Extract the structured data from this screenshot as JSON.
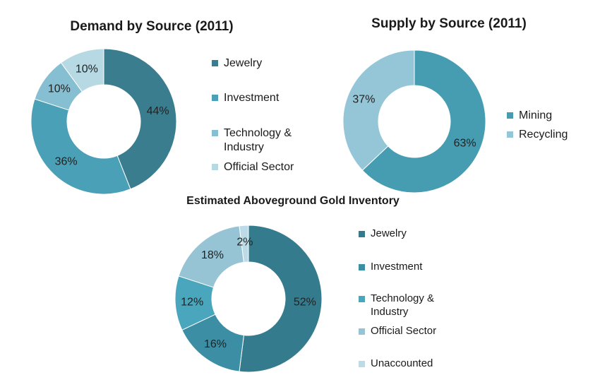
{
  "chart_data": [
    {
      "type": "pie",
      "donut": true,
      "title": "Demand by Source (2011)",
      "categories": [
        "Jewelry",
        "Investment",
        "Technology & Industry",
        "Official Sector"
      ],
      "values": [
        44,
        36,
        10,
        10
      ],
      "data_labels": [
        "44%",
        "36%",
        "10%",
        "10%"
      ],
      "colors": [
        "#3a7d8f",
        "#4aa0b6",
        "#86bfd1",
        "#b7d9e4"
      ],
      "legend": {
        "position": "right",
        "items": [
          "Jewelry",
          "Investment",
          "Technology &\nIndustry",
          "Official Sector"
        ]
      }
    },
    {
      "type": "pie",
      "donut": true,
      "title": "Supply by Source (2011)",
      "categories": [
        "Mining",
        "Recycling"
      ],
      "values": [
        63,
        37
      ],
      "data_labels": [
        "63%",
        "37%"
      ],
      "colors": [
        "#469db2",
        "#94c6d8"
      ],
      "legend": {
        "position": "right",
        "items": [
          "Mining",
          "Recycling"
        ]
      }
    },
    {
      "type": "pie",
      "donut": true,
      "title": "Estimated Aboveground Gold Inventory",
      "categories": [
        "Jewelry",
        "Investment",
        "Technology & Industry",
        "Official Sector",
        "Unaccounted"
      ],
      "values": [
        52,
        16,
        12,
        18,
        2
      ],
      "data_labels": [
        "52%",
        "16%",
        "12%",
        "18%",
        "2%"
      ],
      "colors": [
        "#357b8e",
        "#3b8ea4",
        "#4aa6bd",
        "#97c4d5",
        "#bcdbe6"
      ],
      "legend": {
        "position": "right",
        "items": [
          "Jewelry",
          "Investment",
          "Technology &\nIndustry",
          "Official Sector",
          "Unaccounted"
        ]
      }
    }
  ]
}
